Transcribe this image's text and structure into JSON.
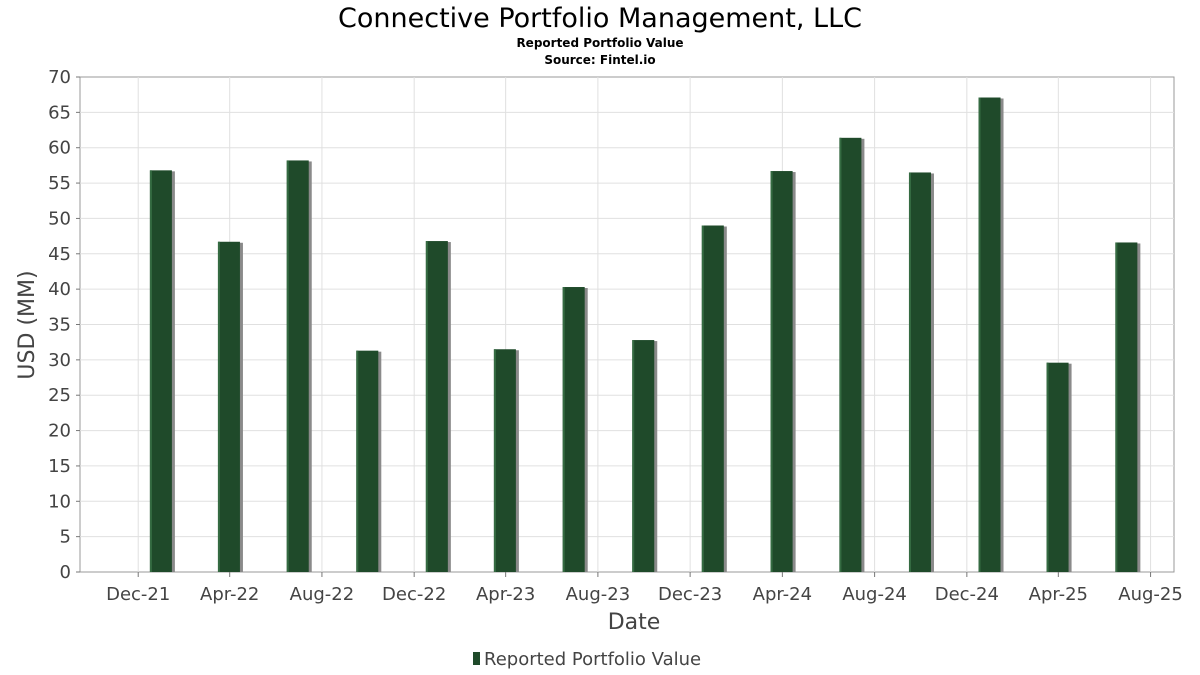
{
  "chart_data": {
    "type": "bar",
    "title": "Connective Portfolio Management, LLC",
    "subtitle": "Reported Portfolio Value",
    "source": "Source: Fintel.io",
    "xlabel": "Date",
    "ylabel": "USD (MM)",
    "ylim": [
      0,
      70
    ],
    "y_ticks": [
      0,
      5,
      10,
      15,
      20,
      25,
      30,
      35,
      40,
      45,
      50,
      55,
      60,
      65,
      70
    ],
    "x_tick_labels": [
      "Dec-21",
      "Apr-22",
      "Aug-22",
      "Dec-22",
      "Apr-23",
      "Aug-23",
      "Dec-23",
      "Apr-24",
      "Aug-24",
      "Dec-24",
      "Apr-25",
      "Aug-25"
    ],
    "x_tick_dates": [
      "2021-12-01",
      "2022-04-01",
      "2022-08-01",
      "2022-12-01",
      "2023-04-01",
      "2023-08-01",
      "2023-12-01",
      "2024-04-01",
      "2024-08-01",
      "2024-12-01",
      "2025-04-01",
      "2025-08-01"
    ],
    "x_range": [
      "2021-09-15",
      "2025-09-01"
    ],
    "bar_dates": [
      "2021-12-31",
      "2022-03-31",
      "2022-06-30",
      "2022-09-30",
      "2022-12-31",
      "2023-03-31",
      "2023-06-30",
      "2023-09-30",
      "2023-12-31",
      "2024-03-31",
      "2024-06-30",
      "2024-09-30",
      "2024-12-31",
      "2025-03-31",
      "2025-06-30"
    ],
    "series": [
      {
        "name": "Reported Portfolio Value",
        "values": [
          56.8,
          46.7,
          58.2,
          31.3,
          46.8,
          31.5,
          40.3,
          32.8,
          49.0,
          56.7,
          61.4,
          56.5,
          67.1,
          29.6,
          46.6
        ]
      }
    ],
    "bar_color": "#1f4a2a",
    "grid": true,
    "legend": "bottom-center"
  }
}
